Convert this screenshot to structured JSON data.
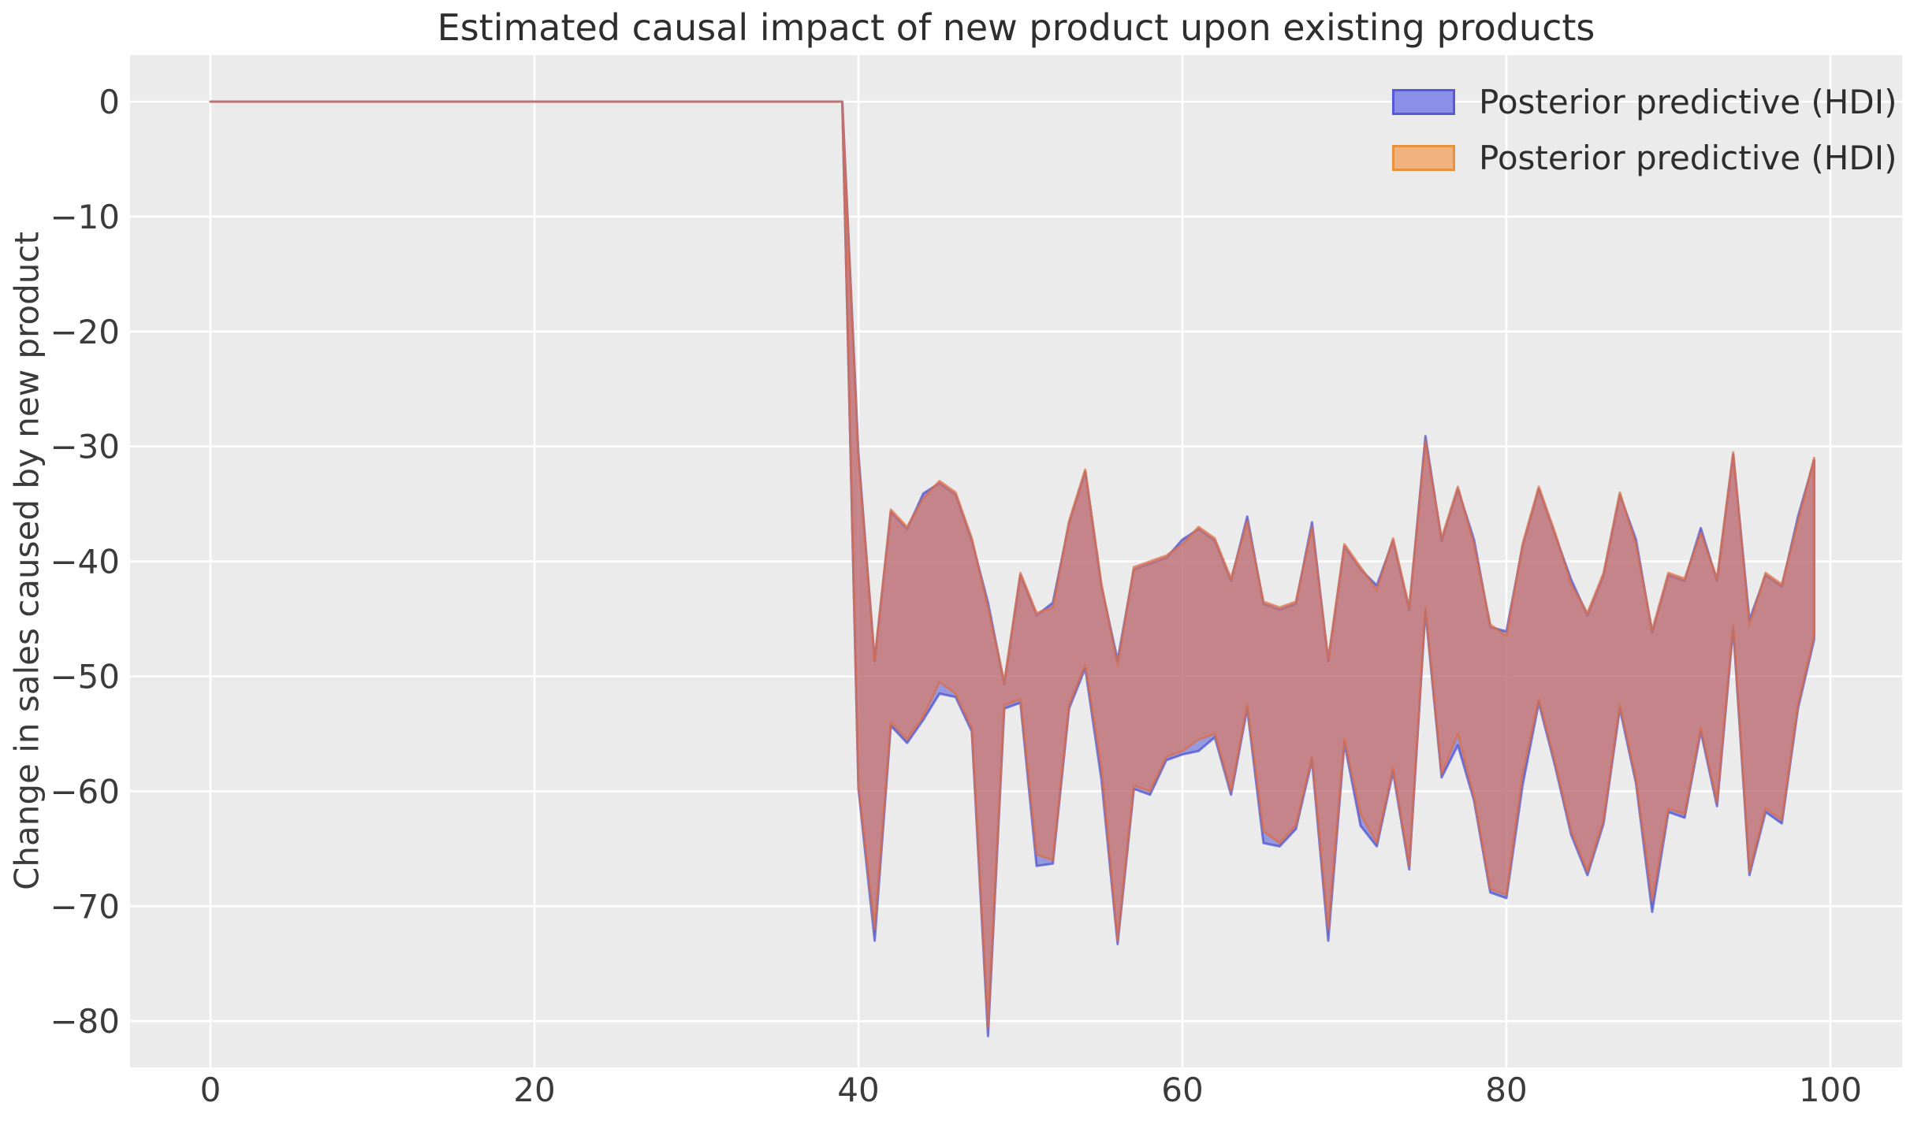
{
  "title": "Estimated causal impact of new product upon existing products",
  "ylabel": "Change in sales caused by new product",
  "xlabel": "",
  "legend": [
    {
      "label": "Posterior predictive (HDI)",
      "fill": "#8a8fe8",
      "border": "#555bd6"
    },
    {
      "label": "Posterior predictive (HDI)",
      "fill": "#f2b181",
      "border": "#e8923f"
    }
  ],
  "axes": {
    "x_ticks": [
      0,
      20,
      40,
      60,
      80,
      100
    ],
    "x_tick_labels": [
      "0",
      "20",
      "40",
      "60",
      "80",
      "100"
    ],
    "y_ticks": [
      0,
      -10,
      -20,
      -30,
      -40,
      -50,
      -60,
      -70,
      -80
    ],
    "y_tick_labels": [
      "0",
      "−10",
      "−20",
      "−30",
      "−40",
      "−50",
      "−60",
      "−70",
      "−80"
    ],
    "xlim": [
      -5,
      104.5
    ],
    "ylim": [
      -84,
      4
    ],
    "grid": true,
    "plot_bg": "#ebebeb",
    "grid_color": "#ffffff",
    "tick_color": "#3b3b3b"
  },
  "chart_data": {
    "type": "area",
    "description": "Two nearly identical HDI bands (blue and orange) overlapping; value is 0 for x=0..39, then band of negative causal impact for x=40..99",
    "x_start": 0,
    "x_step": 1,
    "n_points": 100,
    "title": "Estimated causal impact of new product upon existing products",
    "xlabel": "",
    "ylabel": "Change in sales caused by new product",
    "legend_position": "upper right",
    "series": [
      {
        "name": "Posterior predictive (HDI)",
        "color_role": "blue-band",
        "fill": "rgba(80,85,215,0.55)",
        "stroke": "rgba(70,75,205,0.7)",
        "upper": [
          0,
          0,
          0,
          0,
          0,
          0,
          0,
          0,
          0,
          0,
          0,
          0,
          0,
          0,
          0,
          0,
          0,
          0,
          0,
          0,
          0,
          0,
          0,
          0,
          0,
          0,
          0,
          0,
          0,
          0,
          0,
          0,
          0,
          0,
          0,
          0,
          0,
          0,
          0,
          0,
          -30.6,
          -48.7,
          -35.7,
          -37.2,
          -34.1,
          -33.2,
          -34.2,
          -38.2,
          -43.6,
          -50.7,
          -41.2,
          -44.7,
          -43.6,
          -36.7,
          -32.2,
          -42.2,
          -48.6,
          -40.7,
          -40.2,
          -39.7,
          -38.1,
          -37.2,
          -38.2,
          -41.7,
          -36.1,
          -43.7,
          -44.2,
          -43.7,
          -36.6,
          -48.7,
          -38.7,
          -40.7,
          -42.1,
          -38.2,
          -44.2,
          -29.1,
          -38.2,
          -33.7,
          -38.1,
          -45.7,
          -46.1,
          -38.7,
          -33.7,
          -37.7,
          -41.6,
          -44.7,
          -41.2,
          -34.2,
          -38.1,
          -46.2,
          -41.2,
          -41.7,
          -37.1,
          -41.7,
          -30.7,
          -45.1,
          -41.2,
          -42.2,
          -36.1,
          -31.2
        ],
        "lower": [
          0,
          0,
          0,
          0,
          0,
          0,
          0,
          0,
          0,
          0,
          0,
          0,
          0,
          0,
          0,
          0,
          0,
          0,
          0,
          0,
          0,
          0,
          0,
          0,
          0,
          0,
          0,
          0,
          0,
          0,
          0,
          0,
          0,
          0,
          0,
          0,
          0,
          0,
          0,
          0,
          -59.8,
          -73.0,
          -54.3,
          -55.8,
          -53.8,
          -51.5,
          -51.8,
          -54.8,
          -81.3,
          -52.8,
          -52.3,
          -66.5,
          -66.3,
          -52.8,
          -49.3,
          -59.0,
          -73.3,
          -59.8,
          -60.3,
          -57.3,
          -56.8,
          -56.5,
          -55.3,
          -60.3,
          -52.8,
          -64.5,
          -64.8,
          -63.3,
          -57.3,
          -73.0,
          -55.8,
          -63.0,
          -64.8,
          -58.3,
          -66.8,
          -44.3,
          -58.8,
          -56.0,
          -60.8,
          -68.8,
          -69.3,
          -59.5,
          -52.3,
          -57.8,
          -63.8,
          -67.3,
          -62.8,
          -52.8,
          -59.3,
          -70.5,
          -61.8,
          -62.3,
          -54.8,
          -61.3,
          -45.8,
          -67.3,
          -61.8,
          -62.8,
          -52.8,
          -46.8
        ]
      },
      {
        "name": "Posterior predictive (HDI)",
        "color_role": "orange-band",
        "fill": "rgba(225,120,85,0.62)",
        "stroke": "rgba(219,109,69,0.68)",
        "upper": [
          0,
          0,
          0,
          0,
          0,
          0,
          0,
          0,
          0,
          0,
          0,
          0,
          0,
          0,
          0,
          0,
          0,
          0,
          0,
          0,
          0,
          0,
          0,
          0,
          0,
          0,
          0,
          0,
          0,
          0,
          0,
          0,
          0,
          0,
          0,
          0,
          0,
          0,
          0,
          0,
          -31,
          -48.5,
          -35.5,
          -37,
          -34.5,
          -33,
          -34,
          -38,
          -44,
          -50.5,
          -41,
          -44.5,
          -44,
          -36.5,
          -32,
          -42,
          -49,
          -40.5,
          -40,
          -39.5,
          -38.5,
          -37,
          -38,
          -41.5,
          -36.5,
          -43.5,
          -44,
          -43.5,
          -37,
          -48.5,
          -38.5,
          -40.5,
          -42.5,
          -38,
          -44,
          -29.5,
          -38,
          -33.5,
          -38.5,
          -45.5,
          -46.5,
          -38.5,
          -33.5,
          -37.5,
          -42,
          -44.5,
          -41,
          -34,
          -38.5,
          -46,
          -41,
          -41.5,
          -37.5,
          -41.5,
          -30.5,
          -45.5,
          -41,
          -42,
          -36.5,
          -31
        ],
        "lower": [
          0,
          0,
          0,
          0,
          0,
          0,
          0,
          0,
          0,
          0,
          0,
          0,
          0,
          0,
          0,
          0,
          0,
          0,
          0,
          0,
          0,
          0,
          0,
          0,
          0,
          0,
          0,
          0,
          0,
          0,
          0,
          0,
          0,
          0,
          0,
          0,
          0,
          0,
          0,
          0,
          -59.5,
          -72,
          -54,
          -55.5,
          -53.5,
          -50.5,
          -51.5,
          -54.5,
          -80.5,
          -52.5,
          -52,
          -65.5,
          -66,
          -52.5,
          -49,
          -58,
          -73,
          -59.5,
          -60,
          -57,
          -56.5,
          -55.5,
          -55,
          -60,
          -52.5,
          -63.5,
          -64.5,
          -63,
          -57,
          -72,
          -55.5,
          -62,
          -64.5,
          -58,
          -66.5,
          -44,
          -58.5,
          -55,
          -60.5,
          -68.5,
          -69,
          -58.5,
          -52,
          -57.5,
          -63.5,
          -67,
          -62.5,
          -52.5,
          -59,
          -69.5,
          -61.5,
          -62,
          -54.5,
          -61,
          -45.5,
          -67,
          -61.5,
          -62.5,
          -52.5,
          -46.5
        ]
      }
    ]
  }
}
